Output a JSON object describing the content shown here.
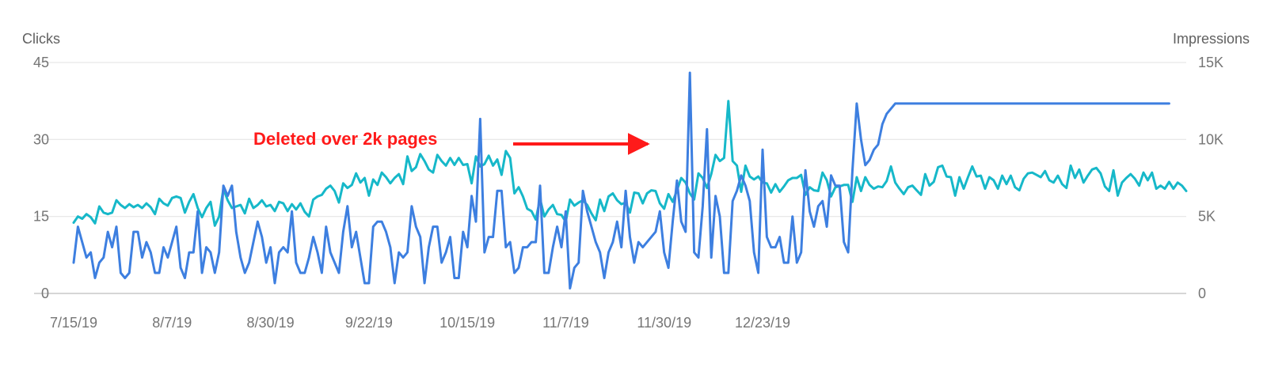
{
  "chart_data": {
    "type": "line",
    "title": "",
    "left_axis": {
      "label": "Clicks",
      "ylim": [
        0,
        45
      ],
      "ticks": [
        "0",
        "15",
        "30",
        "45"
      ],
      "tick_values": [
        0,
        15,
        30,
        45
      ]
    },
    "right_axis": {
      "label": "Impressions",
      "ylim": [
        0,
        15000
      ],
      "ticks": [
        "0",
        "5K",
        "10K",
        "15K"
      ],
      "tick_values": [
        0,
        5000,
        10000,
        15000
      ]
    },
    "x_tick_labels": [
      "7/15/19",
      "8/7/19",
      "8/30/19",
      "9/22/19",
      "10/15/19",
      "11/7/19",
      "11/30/19",
      "12/23/19"
    ],
    "x_tick_indices": [
      0,
      23,
      46,
      69,
      92,
      115,
      138,
      161
    ],
    "grid": true,
    "legend": "none",
    "annotation": {
      "text": "Deleted over 2k pages",
      "arrow_target_index": 95,
      "color": "#ff1a1a"
    },
    "series": [
      {
        "name": "Impressions",
        "axis": "right",
        "color": "#16b8c9",
        "values": [
          4600,
          5000,
          4850,
          5150,
          4950,
          4550,
          5650,
          5250,
          5150,
          5250,
          6050,
          5750,
          5550,
          5800,
          5600,
          5750,
          5550,
          5850,
          5600,
          5150,
          6150,
          5850,
          5700,
          6200,
          6300,
          6200,
          5250,
          5950,
          6450,
          5550,
          4950,
          5550,
          5950,
          4400,
          5000,
          6800,
          6050,
          5550,
          5650,
          5750,
          5200,
          6150,
          5550,
          5750,
          6050,
          5650,
          5750,
          5350,
          5950,
          5850,
          5350,
          5800,
          5450,
          5850,
          5300,
          5000,
          6100,
          6300,
          6400,
          6800,
          7000,
          6650,
          5900,
          7150,
          6850,
          7050,
          7800,
          7200,
          7500,
          6350,
          7400,
          7050,
          7850,
          7550,
          7150,
          7500,
          7750,
          7100,
          8900,
          7950,
          8200,
          9050,
          8600,
          8050,
          7850,
          9000,
          8600,
          8300,
          8800,
          8350,
          8800,
          8350,
          8400,
          7150,
          8900,
          8250,
          8400,
          8950,
          8300,
          8700,
          7700,
          9250,
          8800,
          6500,
          6900,
          6300,
          5500,
          5350,
          4800,
          6150,
          5000,
          5450,
          5750,
          5150,
          5100,
          4650,
          6100,
          5700,
          5900,
          6050,
          5750,
          5200,
          4750,
          6100,
          5350,
          6300,
          6500,
          6050,
          5800,
          5900,
          5250,
          6550,
          6500,
          5850,
          6500,
          6700,
          6650,
          5850,
          5500,
          6450,
          5950,
          6700,
          7500,
          7200,
          6500,
          6100,
          7800,
          7500,
          6850,
          7750,
          9000,
          8600,
          8800,
          12500,
          8600,
          8300,
          6600,
          8300,
          7600,
          7400,
          7600,
          7200,
          7150,
          6550,
          7100,
          6600,
          6950,
          7350,
          7500,
          7500,
          7700,
          6400,
          6900,
          6700,
          6650,
          7850,
          7350,
          6300,
          6900,
          6950,
          7050,
          7050,
          5950,
          7550,
          6650,
          7550,
          7050,
          6800,
          6950,
          6900,
          7300,
          8250,
          7200,
          6800,
          6450,
          6900,
          7000,
          6700,
          6400,
          7750,
          7000,
          7250,
          8200,
          8300,
          7600,
          7550,
          6350,
          7550,
          6800,
          7550,
          8250,
          7600,
          7650,
          6800,
          7550,
          7350,
          6800,
          7650,
          7100,
          7650,
          6900,
          6700,
          7450,
          7800,
          7850,
          7700,
          7550,
          7950,
          7350,
          7200,
          7650,
          7100,
          6850,
          8300,
          7500,
          8050,
          7200,
          7650,
          8050,
          8150,
          7800,
          6950,
          6650,
          8000,
          6350,
          7200,
          7500,
          7750,
          7450,
          7000,
          7850,
          7350,
          7850,
          6800,
          7000,
          6800,
          7250,
          6800,
          7200,
          7000,
          6650
        ]
      },
      {
        "name": "Clicks",
        "axis": "left",
        "color": "#3d7fe0",
        "values": [
          6,
          13,
          10,
          7,
          8,
          3,
          6,
          7,
          12,
          9,
          13,
          4,
          3,
          4,
          12,
          12,
          7,
          10,
          8,
          4,
          4,
          9,
          7,
          10,
          13,
          5,
          3,
          8,
          8,
          16,
          4,
          9,
          8,
          4,
          8,
          21,
          19,
          21,
          12,
          7,
          4,
          6,
          10,
          14,
          11,
          6,
          9,
          2,
          8,
          9,
          8,
          16,
          6,
          4,
          4,
          7,
          11,
          8,
          4,
          13,
          8,
          6,
          4,
          12,
          17,
          9,
          12,
          7,
          2,
          2,
          13,
          14,
          14,
          12,
          9,
          2,
          8,
          7,
          8,
          17,
          13,
          11,
          2,
          9,
          13,
          13,
          6,
          8,
          11,
          3,
          3,
          12,
          9,
          19,
          14,
          34,
          8,
          11,
          11,
          20,
          20,
          9,
          10,
          4,
          5,
          9,
          9,
          10,
          10,
          21,
          4,
          4,
          9,
          13,
          9,
          16,
          1,
          5,
          6,
          20,
          16,
          13,
          10,
          8,
          3,
          8,
          10,
          14,
          9,
          20,
          11,
          6,
          10,
          9,
          10,
          11,
          12,
          16,
          8,
          5,
          14,
          22,
          14,
          12,
          43,
          8,
          7,
          17,
          32,
          7,
          19,
          15,
          4,
          4,
          18,
          20,
          23,
          21,
          18,
          8,
          4,
          28,
          11,
          9,
          9,
          11,
          6,
          6,
          15,
          6,
          8,
          24,
          16,
          13,
          17,
          18,
          13,
          23,
          21,
          21,
          10,
          8,
          24,
          37,
          30,
          25,
          26,
          28,
          29,
          33,
          35,
          36,
          37,
          37,
          37,
          37,
          37,
          37,
          37,
          37,
          37,
          37,
          37,
          37,
          37,
          37,
          37,
          37,
          37,
          37,
          37,
          37,
          37,
          37,
          37,
          37,
          37,
          37,
          37,
          37,
          37,
          37,
          37,
          37,
          37,
          37,
          37,
          37,
          37,
          37,
          37,
          37,
          37,
          37,
          37,
          37,
          37,
          37,
          37,
          37,
          37,
          37,
          37,
          37,
          37,
          37,
          37,
          37,
          37,
          37,
          37,
          37,
          37,
          37,
          37,
          37,
          37
        ]
      }
    ]
  }
}
